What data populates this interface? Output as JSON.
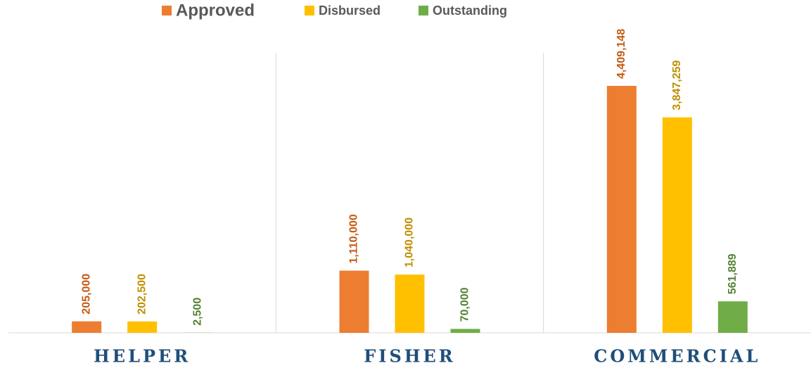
{
  "chart_data": {
    "type": "bar",
    "categories": [
      "HELPER",
      "FISHER",
      "COMMERCIAL"
    ],
    "series": [
      {
        "name": "Approved",
        "color": "#ed7d31",
        "label_color": "#c55a11",
        "values": [
          205000,
          1110000,
          4409148
        ],
        "value_labels": [
          "205,000",
          "1,110,000",
          "4,409,148"
        ]
      },
      {
        "name": "Disbursed",
        "color": "#ffc000",
        "label_color": "#bf9000",
        "values": [
          202500,
          1040000,
          3847259
        ],
        "value_labels": [
          "202,500",
          "1,040,000",
          "3,847,259"
        ]
      },
      {
        "name": "Outstanding",
        "color": "#70ad47",
        "label_color": "#548235",
        "values": [
          2500,
          70000,
          561889
        ],
        "value_labels": [
          "2,500",
          "70,000",
          "561,889"
        ]
      }
    ],
    "ylim": [
      0,
      5000000
    ],
    "legend": "top"
  }
}
